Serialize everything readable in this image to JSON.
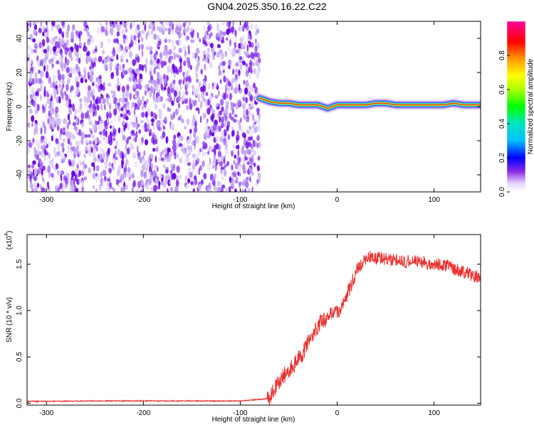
{
  "title": "GN04.2025.350.16.22.C22",
  "colors": {
    "snr_line": "#e8302e",
    "scatter_dark": "#6a00e0",
    "scatter_light": "#c9b4f2",
    "ridge": "#e8302e"
  },
  "chart_data": [
    {
      "type": "heatmap",
      "title": "GN04.2025.350.16.22.C22",
      "xlabel": "Height of straight line (km)",
      "ylabel": "Frequency (Hz)",
      "xlim": [
        -320,
        148
      ],
      "ylim": [
        -50,
        50
      ],
      "xticks": [
        -300,
        -200,
        -100,
        0,
        100
      ],
      "yticks": [
        -40,
        -20,
        0,
        20,
        40
      ],
      "noise_region_x": [
        -320,
        -80
      ],
      "ridge": {
        "x": [
          -80,
          -70,
          -60,
          -50,
          -40,
          -30,
          -20,
          -10,
          0,
          10,
          20,
          30,
          40,
          50,
          60,
          70,
          80,
          90,
          100,
          110,
          120,
          130,
          140,
          148
        ],
        "frequency": [
          5,
          3,
          2,
          2,
          1,
          1,
          1,
          -1,
          1,
          1,
          1,
          1,
          2,
          2,
          1,
          1,
          1,
          1,
          1,
          1,
          2,
          1,
          1,
          1
        ]
      },
      "colorbar": {
        "label": "Normalized spectral amplitude",
        "range": [
          0,
          1
        ],
        "ticks": [
          "0.0",
          "0.2",
          "0.4",
          "0.6",
          "0.8"
        ],
        "tick_values": [
          0.0,
          0.2,
          0.4,
          0.6,
          0.8
        ]
      },
      "grid": false
    },
    {
      "type": "line",
      "xlabel": "Height of straight line (km)",
      "ylabel": "SNR (10 * v/v)",
      "multiplier": "(x10",
      "multiplier_exp": "4",
      "xlim": [
        -320,
        148
      ],
      "ylim": [
        -0.02,
        1.82
      ],
      "xticks": [
        -300,
        -200,
        -100,
        0,
        100
      ],
      "yticks": [
        "0.0",
        "0.5",
        "1.0",
        "1.5"
      ],
      "ytick_values": [
        0.0,
        0.5,
        1.0,
        1.5
      ],
      "series": [
        {
          "x": [
            -320,
            -250,
            -150,
            -100,
            -70,
            -62,
            -55,
            -45,
            -35,
            -25,
            -15,
            -5,
            0,
            5,
            10,
            15,
            20,
            25,
            30,
            35,
            40,
            45,
            50,
            60,
            70,
            80,
            90,
            100,
            110,
            120,
            130,
            140,
            148
          ],
          "y": [
            0.02,
            0.025,
            0.025,
            0.025,
            0.05,
            0.2,
            0.3,
            0.4,
            0.55,
            0.75,
            0.9,
            0.95,
            1.0,
            1.05,
            1.15,
            1.3,
            1.45,
            1.5,
            1.55,
            1.58,
            1.55,
            1.57,
            1.55,
            1.55,
            1.52,
            1.55,
            1.52,
            1.5,
            1.5,
            1.45,
            1.42,
            1.38,
            1.35
          ]
        }
      ],
      "grid": false
    }
  ]
}
